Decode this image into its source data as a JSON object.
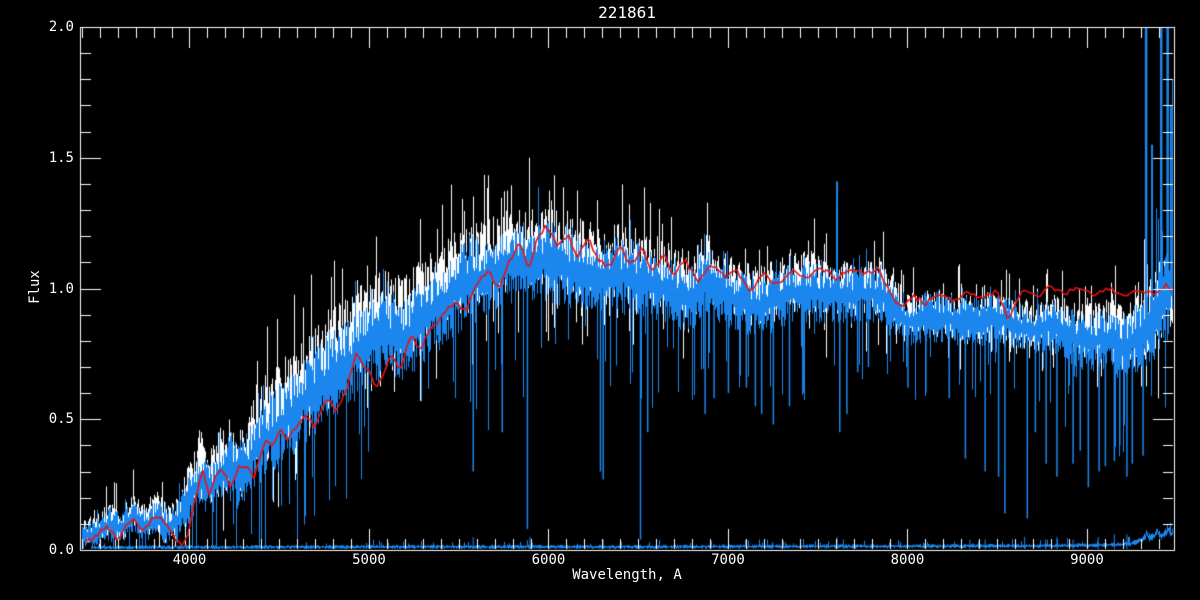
{
  "chart_data": {
    "type": "line",
    "title": "221861",
    "xlabel": "Wavelength, A",
    "ylabel": "Flux",
    "xlim": [
      3390,
      9485
    ],
    "ylim": [
      0.0,
      2.0
    ],
    "background": "#000000",
    "axis_color": "#ffffff",
    "grid": false,
    "legend": null,
    "x_ticks": [
      {
        "value": 4000,
        "label": "4000"
      },
      {
        "value": 5000,
        "label": "5000"
      },
      {
        "value": 6000,
        "label": "6000"
      },
      {
        "value": 7000,
        "label": "7000"
      },
      {
        "value": 8000,
        "label": "8000"
      },
      {
        "value": 9000,
        "label": "9000"
      }
    ],
    "x_minor_step": 100,
    "y_ticks": [
      {
        "value": 0.0,
        "label": "0.0"
      },
      {
        "value": 0.5,
        "label": "0.5"
      },
      {
        "value": 1.0,
        "label": "1.0"
      },
      {
        "value": 1.5,
        "label": "1.5"
      },
      {
        "value": 2.0,
        "label": "2.0"
      }
    ],
    "y_minor_step": 0.1,
    "series": [
      {
        "name": "observed-spectrum-white",
        "color": "#ffffff",
        "style": "noisy-band",
        "x": [
          3400,
          3500,
          3560,
          3620,
          3690,
          3750,
          3810,
          3870,
          3920,
          3960,
          4010,
          4070,
          4120,
          4170,
          4230,
          4300,
          4360,
          4430,
          4500,
          4600,
          4700,
          4800,
          4900,
          5000,
          5100,
          5200,
          5300,
          5400,
          5500,
          5600,
          5700,
          5800,
          5900,
          6000,
          6100,
          6200,
          6300,
          6400,
          6500,
          6600,
          6700,
          6800,
          6880,
          6950,
          7050,
          7150,
          7250,
          7350,
          7450,
          7550,
          7650,
          7750,
          7850,
          7920,
          8000,
          8100,
          8200,
          8300,
          8400,
          8500,
          8600,
          8700,
          8800,
          8900,
          9000,
          9100,
          9200,
          9300,
          9400,
          9485
        ],
        "center": [
          0.06,
          0.09,
          0.12,
          0.09,
          0.16,
          0.11,
          0.15,
          0.11,
          0.12,
          0.17,
          0.26,
          0.31,
          0.27,
          0.34,
          0.37,
          0.33,
          0.45,
          0.49,
          0.55,
          0.62,
          0.7,
          0.76,
          0.81,
          0.88,
          0.9,
          0.88,
          0.96,
          1.01,
          1.06,
          1.09,
          1.12,
          1.15,
          1.15,
          1.15,
          1.13,
          1.12,
          1.1,
          1.1,
          1.08,
          1.06,
          1.03,
          1.01,
          1.09,
          1.03,
          0.99,
          0.97,
          0.99,
          1.02,
          1.03,
          1.0,
          1.0,
          1.01,
          1.01,
          0.95,
          0.88,
          0.9,
          0.9,
          0.88,
          0.88,
          0.9,
          0.86,
          0.85,
          0.88,
          0.85,
          0.83,
          0.85,
          0.81,
          0.85,
          0.93,
          1.0
        ],
        "amp": [
          0.05,
          0.06,
          0.07,
          0.06,
          0.08,
          0.07,
          0.08,
          0.07,
          0.08,
          0.09,
          0.11,
          0.12,
          0.12,
          0.13,
          0.14,
          0.14,
          0.15,
          0.16,
          0.17,
          0.17,
          0.17,
          0.17,
          0.17,
          0.17,
          0.17,
          0.17,
          0.17,
          0.17,
          0.17,
          0.17,
          0.16,
          0.16,
          0.16,
          0.16,
          0.16,
          0.15,
          0.15,
          0.15,
          0.15,
          0.14,
          0.14,
          0.13,
          0.13,
          0.12,
          0.12,
          0.12,
          0.12,
          0.12,
          0.12,
          0.11,
          0.11,
          0.11,
          0.11,
          0.1,
          0.1,
          0.1,
          0.1,
          0.1,
          0.1,
          0.1,
          0.1,
          0.1,
          0.1,
          0.11,
          0.11,
          0.12,
          0.13,
          0.14,
          0.18,
          0.2
        ]
      },
      {
        "name": "observed-spectrum-blue",
        "color": "#1b87ee",
        "style": "noisy-band",
        "x": [
          3400,
          3500,
          3560,
          3620,
          3690,
          3750,
          3810,
          3870,
          3920,
          3960,
          4010,
          4070,
          4120,
          4170,
          4230,
          4300,
          4360,
          4430,
          4500,
          4600,
          4700,
          4800,
          4900,
          5000,
          5100,
          5200,
          5300,
          5400,
          5500,
          5600,
          5700,
          5800,
          5900,
          6000,
          6100,
          6200,
          6300,
          6400,
          6500,
          6600,
          6700,
          6800,
          6880,
          6950,
          7050,
          7150,
          7250,
          7350,
          7450,
          7550,
          7650,
          7750,
          7850,
          7920,
          8000,
          8100,
          8200,
          8300,
          8400,
          8500,
          8600,
          8700,
          8800,
          8900,
          9000,
          9100,
          9200,
          9300,
          9400,
          9485
        ],
        "center": [
          0.05,
          0.07,
          0.1,
          0.08,
          0.13,
          0.09,
          0.12,
          0.09,
          0.1,
          0.14,
          0.22,
          0.26,
          0.23,
          0.28,
          0.31,
          0.28,
          0.38,
          0.42,
          0.47,
          0.54,
          0.61,
          0.67,
          0.72,
          0.79,
          0.82,
          0.8,
          0.88,
          0.94,
          1.0,
          1.03,
          1.06,
          1.1,
          1.1,
          1.1,
          1.08,
          1.07,
          1.05,
          1.05,
          1.03,
          1.01,
          0.98,
          0.96,
          1.04,
          0.98,
          0.95,
          0.93,
          0.95,
          0.98,
          0.99,
          0.97,
          0.97,
          0.98,
          0.98,
          0.93,
          0.87,
          0.89,
          0.89,
          0.87,
          0.87,
          0.89,
          0.85,
          0.84,
          0.86,
          0.82,
          0.79,
          0.81,
          0.77,
          0.82,
          0.92,
          1.05
        ],
        "amp": [
          0.05,
          0.06,
          0.07,
          0.06,
          0.08,
          0.07,
          0.08,
          0.07,
          0.08,
          0.09,
          0.11,
          0.12,
          0.12,
          0.13,
          0.14,
          0.14,
          0.15,
          0.16,
          0.17,
          0.17,
          0.17,
          0.17,
          0.17,
          0.17,
          0.17,
          0.17,
          0.17,
          0.17,
          0.17,
          0.17,
          0.16,
          0.16,
          0.16,
          0.16,
          0.16,
          0.15,
          0.15,
          0.15,
          0.15,
          0.14,
          0.14,
          0.13,
          0.13,
          0.12,
          0.12,
          0.12,
          0.12,
          0.12,
          0.12,
          0.11,
          0.11,
          0.11,
          0.11,
          0.1,
          0.1,
          0.1,
          0.1,
          0.1,
          0.1,
          0.1,
          0.1,
          0.1,
          0.1,
          0.11,
          0.11,
          0.12,
          0.13,
          0.14,
          0.18,
          0.2
        ]
      },
      {
        "name": "sky-baseline",
        "color": "#1b87ee",
        "style": "noisy-band",
        "x": [
          3450,
          5000,
          6500,
          7600,
          8300,
          8800,
          9000,
          9150,
          9250,
          9310,
          9330,
          9350,
          9370,
          9390,
          9410,
          9430,
          9450,
          9465,
          9485
        ],
        "center": [
          0.01,
          0.012,
          0.012,
          0.014,
          0.015,
          0.016,
          0.018,
          0.02,
          0.025,
          0.04,
          0.06,
          0.045,
          0.05,
          0.07,
          0.05,
          0.06,
          0.08,
          0.06,
          0.07
        ],
        "amp": [
          0.008,
          0.008,
          0.008,
          0.008,
          0.008,
          0.008,
          0.008,
          0.009,
          0.01,
          0.014,
          0.018,
          0.016,
          0.016,
          0.02,
          0.016,
          0.018,
          0.022,
          0.018,
          0.02
        ]
      },
      {
        "name": "model-fit-red",
        "color": "#e51212",
        "style": "line",
        "x": [
          3420,
          3480,
          3540,
          3600,
          3660,
          3700,
          3740,
          3790,
          3840,
          3890,
          3930,
          3960,
          4000,
          4040,
          4075,
          4110,
          4150,
          4185,
          4230,
          4270,
          4320,
          4360,
          4400,
          4430,
          4470,
          4510,
          4550,
          4600,
          4640,
          4700,
          4760,
          4820,
          4880,
          4930,
          4980,
          5050,
          5120,
          5170,
          5230,
          5290,
          5350,
          5420,
          5480,
          5540,
          5600,
          5660,
          5720,
          5780,
          5840,
          5890,
          5940,
          5990,
          6050,
          6110,
          6160,
          6220,
          6280,
          6340,
          6400,
          6460,
          6520,
          6580,
          6640,
          6700,
          6760,
          6830,
          6900,
          6980,
          7050,
          7120,
          7200,
          7280,
          7360,
          7440,
          7520,
          7600,
          7680,
          7760,
          7840,
          7900,
          7960,
          8030,
          8100,
          8180,
          8260,
          8340,
          8420,
          8500,
          8560,
          8640,
          8720,
          8800,
          8880,
          8960,
          9040,
          9120,
          9200,
          9280,
          9360,
          9440,
          9485
        ],
        "y": [
          0.03,
          0.05,
          0.09,
          0.04,
          0.1,
          0.12,
          0.07,
          0.12,
          0.13,
          0.07,
          0.04,
          0.01,
          0.08,
          0.22,
          0.3,
          0.21,
          0.3,
          0.3,
          0.24,
          0.31,
          0.33,
          0.28,
          0.38,
          0.42,
          0.4,
          0.46,
          0.42,
          0.48,
          0.52,
          0.47,
          0.58,
          0.53,
          0.63,
          0.75,
          0.7,
          0.62,
          0.75,
          0.68,
          0.82,
          0.77,
          0.85,
          0.9,
          0.95,
          0.91,
          1.02,
          1.07,
          1.0,
          1.1,
          1.17,
          1.08,
          1.19,
          1.24,
          1.16,
          1.21,
          1.12,
          1.19,
          1.11,
          1.08,
          1.16,
          1.09,
          1.15,
          1.06,
          1.13,
          1.05,
          1.11,
          1.03,
          1.09,
          1.05,
          1.07,
          0.99,
          1.05,
          1.01,
          1.07,
          1.03,
          1.08,
          1.04,
          1.08,
          1.05,
          1.08,
          0.98,
          0.93,
          0.97,
          0.94,
          0.98,
          0.95,
          0.99,
          0.96,
          1.0,
          0.88,
          0.99,
          0.97,
          1.01,
          0.98,
          1.01,
          0.98,
          1.0,
          0.97,
          1.0,
          0.98,
          1.01,
          0.99
        ]
      }
    ],
    "blue_down_spikes": [
      [
        5578,
        0.3
      ],
      [
        5740,
        0.45
      ],
      [
        5880,
        0.08
      ],
      [
        6287,
        0.3
      ],
      [
        6302,
        0.27
      ],
      [
        6510,
        0.04
      ],
      [
        6550,
        0.45
      ],
      [
        6870,
        0.52
      ],
      [
        6920,
        0.58
      ],
      [
        7000,
        0.6
      ],
      [
        7100,
        0.62
      ],
      [
        7150,
        0.55
      ],
      [
        7185,
        0.52
      ],
      [
        7250,
        0.48
      ],
      [
        7340,
        0.55
      ],
      [
        7420,
        0.6
      ],
      [
        7620,
        0.45
      ],
      [
        7660,
        0.52
      ],
      [
        7720,
        0.68
      ],
      [
        7780,
        0.7
      ],
      [
        8000,
        0.62
      ],
      [
        8100,
        0.6
      ],
      [
        8230,
        0.58
      ],
      [
        8320,
        0.35
      ],
      [
        8430,
        0.3
      ],
      [
        8505,
        0.28
      ],
      [
        8540,
        0.14
      ],
      [
        8665,
        0.12
      ],
      [
        8710,
        0.45
      ],
      [
        8770,
        0.33
      ],
      [
        8830,
        0.28
      ],
      [
        8920,
        0.33
      ],
      [
        8960,
        0.38
      ],
      [
        9005,
        0.24
      ],
      [
        9065,
        0.3
      ],
      [
        9100,
        0.32
      ],
      [
        9150,
        0.34
      ],
      [
        9180,
        0.4
      ],
      [
        9220,
        0.28
      ],
      [
        9250,
        0.33
      ],
      [
        9310,
        0.36
      ]
    ],
    "blue_up_spikes": [
      [
        7605,
        1.41
      ],
      [
        9327,
        2.05
      ],
      [
        9360,
        1.55
      ],
      [
        9411,
        2.05
      ],
      [
        9447,
        2.05
      ],
      [
        9465,
        1.7
      ]
    ],
    "white_up_spikes": [
      [
        7605,
        1.32
      ],
      [
        9327,
        1.72
      ],
      [
        9411,
        1.5
      ]
    ],
    "sky_spikes": [
      [
        5578,
        0.05
      ],
      [
        5894,
        0.05
      ],
      [
        6302,
        0.04
      ],
      [
        7245,
        0.03
      ],
      [
        7605,
        0.05
      ],
      [
        7640,
        0.04
      ],
      [
        8345,
        0.04
      ],
      [
        8430,
        0.04
      ],
      [
        8650,
        0.05
      ],
      [
        8767,
        0.04
      ],
      [
        8830,
        0.05
      ],
      [
        8920,
        0.04
      ],
      [
        9000,
        0.05
      ],
      [
        9060,
        0.05
      ],
      [
        9150,
        0.06
      ],
      [
        9220,
        0.06
      ]
    ]
  }
}
